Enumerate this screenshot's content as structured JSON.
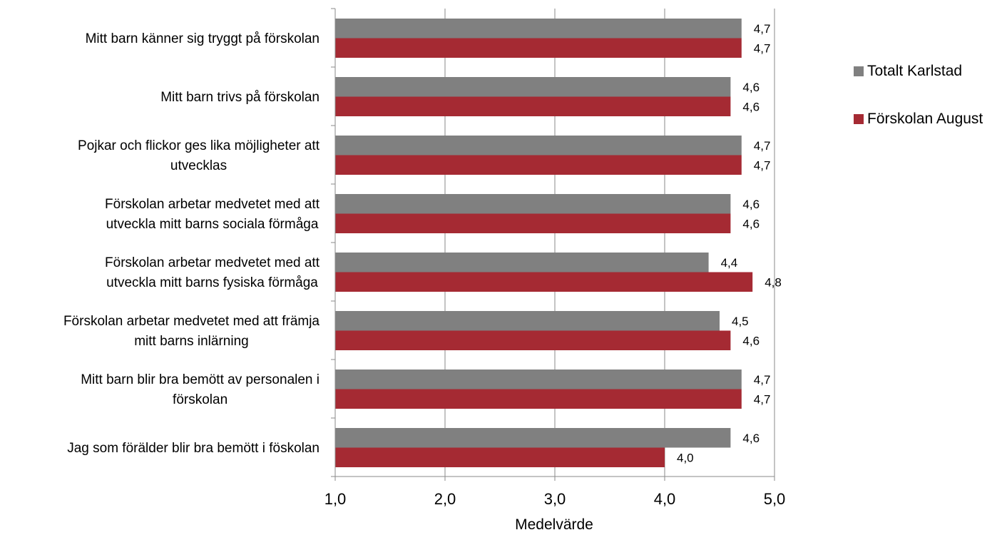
{
  "chart_data": {
    "type": "bar",
    "orientation": "horizontal",
    "categories": [
      "Mitt barn känner sig tryggt på förskolan",
      "Mitt barn trivs på förskolan",
      "Pojkar och flickor ges lika möjligheter att utvecklas",
      "Förskolan arbetar medvetet med att utveckla mitt barns sociala förmåga",
      "Förskolan arbetar medvetet med att utveckla mitt barns fysiska förmåga",
      "Förskolan arbetar medvetet med att främja mitt barns inlärning",
      "Mitt barn blir bra bemött av personalen i förskolan",
      "Jag som förälder blir bra bemött i föskolan"
    ],
    "category_lines": [
      [
        "Mitt barn känner sig tryggt på förskolan"
      ],
      [
        "Mitt barn trivs på förskolan"
      ],
      [
        "Pojkar och flickor ges lika möjligheter att",
        "utvecklas"
      ],
      [
        "Förskolan arbetar medvetet med att",
        "utveckla mitt barns sociala förmåga"
      ],
      [
        "Förskolan arbetar medvetet med att",
        "utveckla mitt barns fysiska förmåga"
      ],
      [
        "Förskolan arbetar medvetet med att främja",
        "mitt barns inlärning"
      ],
      [
        "Mitt barn blir bra bemött av personalen i",
        "förskolan"
      ],
      [
        "Jag som förälder blir bra bemött i föskolan"
      ]
    ],
    "series": [
      {
        "name": "Totalt Karlstad",
        "color": "#808080",
        "values": [
          4.7,
          4.6,
          4.7,
          4.6,
          4.4,
          4.5,
          4.7,
          4.6
        ],
        "labels": [
          "4,7",
          "4,6",
          "4,7",
          "4,6",
          "4,4",
          "4,5",
          "4,7",
          "4,6"
        ]
      },
      {
        "name": "Förskolan August",
        "color": "#A52A33",
        "values": [
          4.7,
          4.6,
          4.7,
          4.6,
          4.8,
          4.6,
          4.7,
          4.0
        ],
        "labels": [
          "4,7",
          "4,6",
          "4,7",
          "4,6",
          "4,8",
          "4,6",
          "4,7",
          "4,0"
        ]
      }
    ],
    "xlim": [
      1.0,
      5.0
    ],
    "xticks": [
      1.0,
      2.0,
      3.0,
      4.0,
      5.0
    ],
    "xtick_labels": [
      "1,0",
      "2,0",
      "3,0",
      "4,0",
      "5,0"
    ],
    "xlabel": "Medelvärde",
    "grid": "vertical",
    "legend_position": "right"
  }
}
